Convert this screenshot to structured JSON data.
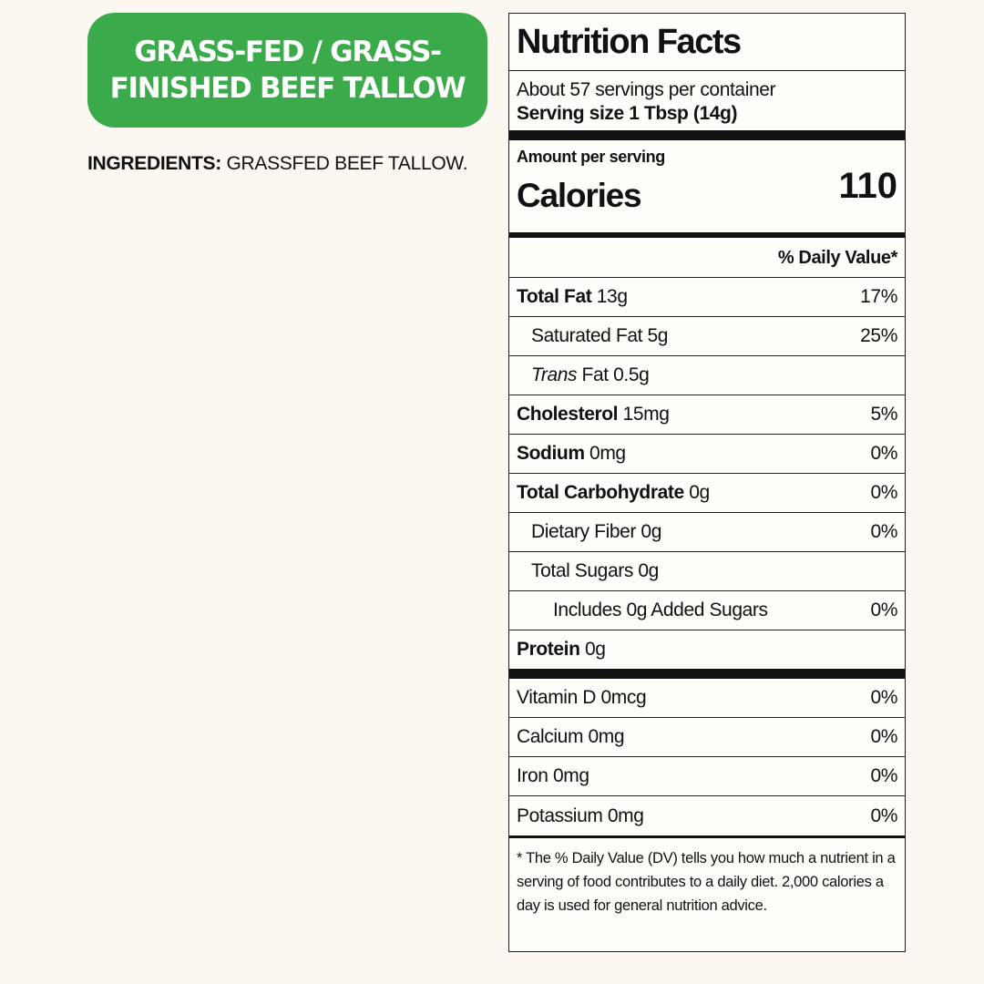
{
  "badge": {
    "line1": "GRASS-FED / GRASS-",
    "line2": "FINISHED BEEF TALLOW",
    "color": "#3aaa4a"
  },
  "ingredients": {
    "label": "INGREDIENTS:",
    "text": " GRASSFED BEEF TALLOW."
  },
  "facts": {
    "title": "Nutrition Facts",
    "servings_per_container": "About 57 servings per container",
    "serving_size": "Serving size 1 Tbsp (14g)",
    "amount_per_serving": "Amount per serving",
    "calories_label": "Calories",
    "calories_value": "110",
    "daily_value_header": "% Daily Value*",
    "nutrients": {
      "total_fat": {
        "name": "Total Fat",
        "amount": " 13g",
        "dv": "17%"
      },
      "saturated_fat": {
        "name": "Saturated Fat 5g",
        "dv": "25%"
      },
      "trans_fat": {
        "name_italic": "Trans",
        "name": " Fat 0.5g"
      },
      "cholesterol": {
        "name": "Cholesterol",
        "amount": " 15mg",
        "dv": "5%"
      },
      "sodium": {
        "name": "Sodium",
        "amount": " 0mg",
        "dv": "0%"
      },
      "total_carbohydrate": {
        "name": "Total Carbohydrate",
        "amount": " 0g",
        "dv": "0%"
      },
      "dietary_fiber": {
        "name": "Dietary Fiber 0g",
        "dv": "0%"
      },
      "total_sugars": {
        "name": "Total Sugars 0g"
      },
      "added_sugars": {
        "name": "Includes 0g Added Sugars",
        "dv": "0%"
      },
      "protein": {
        "name": "Protein",
        "amount": " 0g"
      }
    },
    "vitamins": {
      "vitamin_d": {
        "name": "Vitamin D 0mcg",
        "dv": "0%"
      },
      "calcium": {
        "name": "Calcium 0mg",
        "dv": "0%"
      },
      "iron": {
        "name": "Iron 0mg",
        "dv": "0%"
      },
      "potassium": {
        "name": "Potassium 0mg",
        "dv": "0%"
      }
    },
    "footnote": "* The % Daily Value (DV) tells you how much a nutrient in a serving of food contributes to a daily diet. 2,000 calories a day is used for general nutrition advice."
  }
}
